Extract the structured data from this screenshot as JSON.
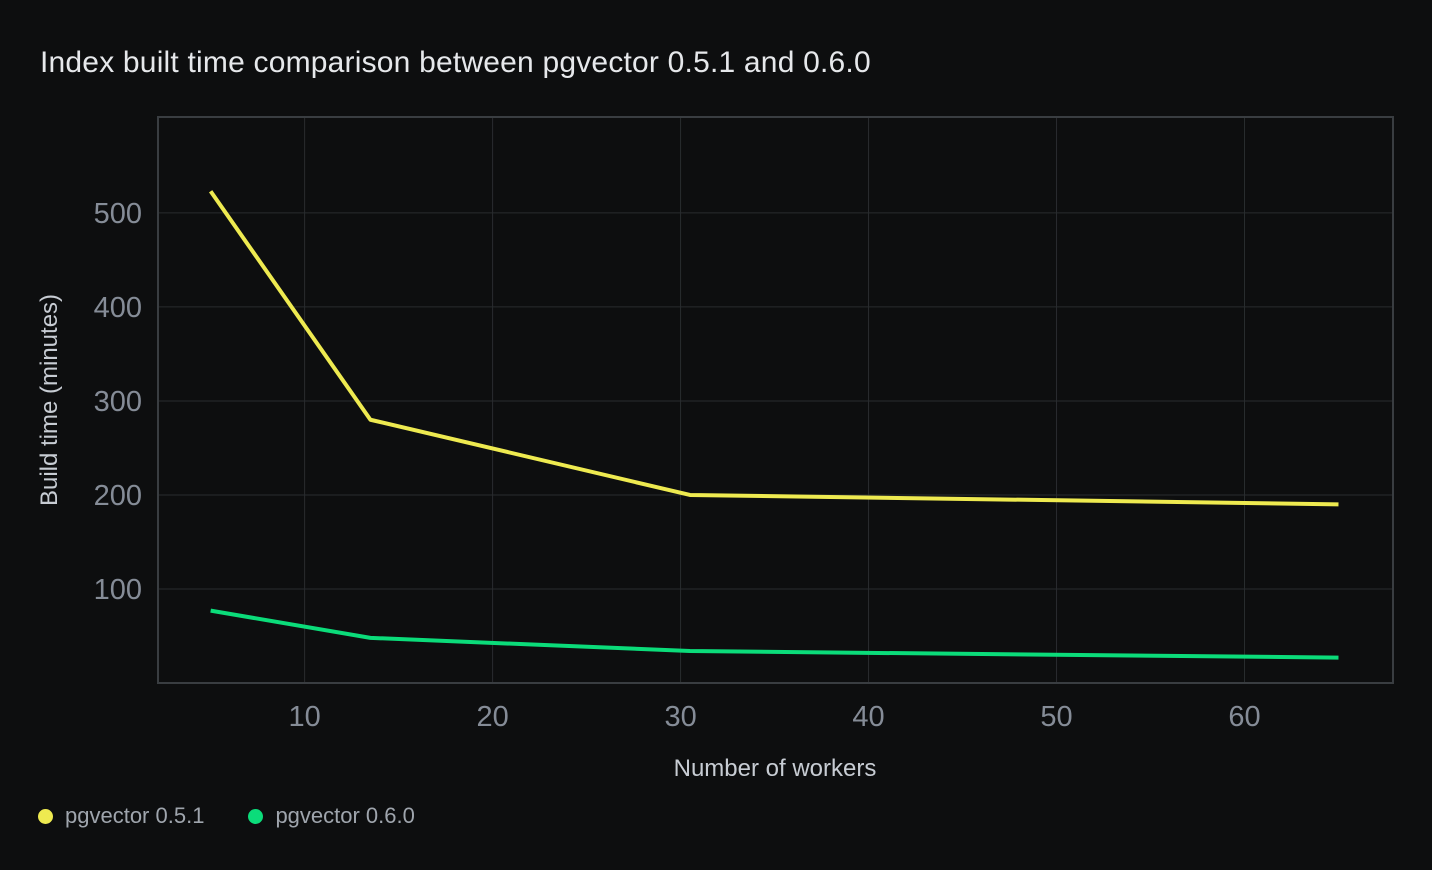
{
  "chart_data": {
    "type": "line",
    "title": "Index built time comparison between pgvector 0.5.1 and 0.6.0",
    "xlabel": "Number of workers",
    "ylabel": "Build time (minutes)",
    "x_ticks": [
      10,
      20,
      30,
      40,
      50,
      60
    ],
    "y_ticks": [
      100,
      200,
      300,
      400,
      500
    ],
    "xlim": [
      2.2,
      67.9
    ],
    "ylim": [
      0,
      602
    ],
    "grid": true,
    "legend_position": "bottom-left",
    "series": [
      {
        "name": "pgvector 0.5.1",
        "color": "#eeea50",
        "x": [
          5,
          13.5,
          30.5,
          65
        ],
        "y": [
          523,
          280,
          200,
          190
        ]
      },
      {
        "name": "pgvector 0.6.0",
        "color": "#0bdc7a",
        "x": [
          5,
          13.5,
          30.5,
          65
        ],
        "y": [
          77,
          48,
          34,
          27
        ]
      }
    ]
  },
  "colors": {
    "background": "#0d0e0f",
    "title_text": "#e6e8eb",
    "axis_title_text": "#c7ccd3",
    "tick_text": "#858c97",
    "legend_text": "#9fa5ad",
    "gridline": "#292c2f",
    "plot_border": "#393d41",
    "series_051": "#eeea50",
    "series_060": "#0bdc7a"
  }
}
